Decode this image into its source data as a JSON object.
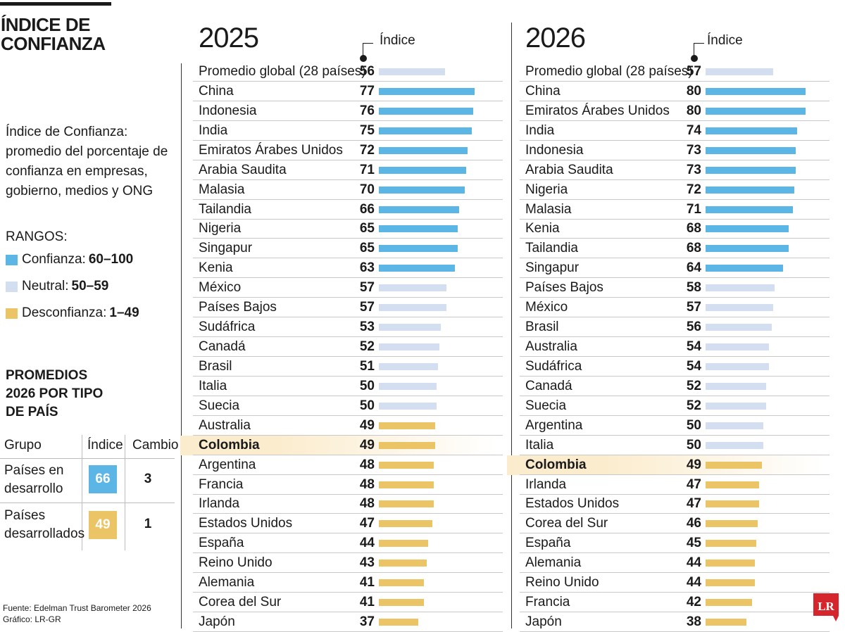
{
  "title_lines": [
    "ÍNDICE DE",
    "CONFIANZA"
  ],
  "description_lines": [
    "Índice de Confianza:",
    "promedio del porcentaje de",
    "confianza en empresas,",
    "gobierno, medios y ONG"
  ],
  "ranges": {
    "title": "RANGOS:",
    "items": [
      {
        "label": "Confianza:",
        "range": "60–100",
        "color": "#5bb5e5"
      },
      {
        "label": "Neutral:",
        "range": "50–59",
        "color": "#d3def0"
      },
      {
        "label": "Desconfianza:",
        "range": "1–49",
        "color": "#ebc466"
      }
    ]
  },
  "promedios": {
    "title_lines": [
      "PROMEDIOS",
      "2026 POR TIPO",
      "DE PAÍS"
    ],
    "headers": {
      "group": "Grupo",
      "index": "Índice",
      "change": "Cambio"
    },
    "rows": [
      {
        "group_lines": [
          "Países en",
          "desarrollo"
        ],
        "index": "66",
        "change": "3",
        "color": "#5bb5e5"
      },
      {
        "group_lines": [
          "Países",
          "desarrollados"
        ],
        "index": "49",
        "change": "1",
        "color": "#ebc466"
      }
    ]
  },
  "source_lines": [
    "Fuente: Edelman Trust Barometer 2026",
    "Gráfico: LR-GR"
  ],
  "logo_text": "LR",
  "colors": {
    "trust": "#5bb5e5",
    "neutral": "#d3def0",
    "distrust": "#ebc466",
    "highlight": "#fbeccd",
    "logo": "#d4262c"
  },
  "chart_data": [
    {
      "type": "bar",
      "year": "2025",
      "index_label": "Índice",
      "highlight": "Colombia",
      "xlim": [
        0,
        100
      ],
      "rows": [
        {
          "name": "Promedio global (28 países)",
          "value": 56
        },
        {
          "name": "China",
          "value": 77
        },
        {
          "name": "Indonesia",
          "value": 76
        },
        {
          "name": "India",
          "value": 75
        },
        {
          "name": "Emiratos Árabes Unidos",
          "value": 72
        },
        {
          "name": "Arabia Saudita",
          "value": 71
        },
        {
          "name": "Malasia",
          "value": 70
        },
        {
          "name": "Tailandia",
          "value": 66
        },
        {
          "name": "Nigeria",
          "value": 65
        },
        {
          "name": "Singapur",
          "value": 65
        },
        {
          "name": "Kenia",
          "value": 63
        },
        {
          "name": "México",
          "value": 57
        },
        {
          "name": "Países Bajos",
          "value": 57
        },
        {
          "name": "Sudáfrica",
          "value": 53
        },
        {
          "name": "Canadá",
          "value": 52
        },
        {
          "name": "Brasil",
          "value": 51
        },
        {
          "name": "Italia",
          "value": 50
        },
        {
          "name": "Suecia",
          "value": 50
        },
        {
          "name": "Australia",
          "value": 49
        },
        {
          "name": "Colombia",
          "value": 49
        },
        {
          "name": "Argentina",
          "value": 48
        },
        {
          "name": "Francia",
          "value": 48
        },
        {
          "name": "Irlanda",
          "value": 48
        },
        {
          "name": "Estados Unidos",
          "value": 47
        },
        {
          "name": "España",
          "value": 44
        },
        {
          "name": "Reino Unido",
          "value": 43
        },
        {
          "name": "Alemania",
          "value": 41
        },
        {
          "name": "Corea del Sur",
          "value": 41
        },
        {
          "name": "Japón",
          "value": 37
        }
      ]
    },
    {
      "type": "bar",
      "year": "2026",
      "index_label": "Índice",
      "highlight": "Colombia",
      "xlim": [
        0,
        100
      ],
      "rows": [
        {
          "name": "Promedio global (28 países)",
          "value": 57
        },
        {
          "name": "China",
          "value": 80
        },
        {
          "name": "Emiratos Árabes Unidos",
          "value": 80
        },
        {
          "name": "India",
          "value": 74
        },
        {
          "name": "Indonesia",
          "value": 73
        },
        {
          "name": "Arabia Saudita",
          "value": 73
        },
        {
          "name": "Nigeria",
          "value": 72
        },
        {
          "name": "Malasia",
          "value": 71
        },
        {
          "name": "Kenia",
          "value": 68
        },
        {
          "name": "Tailandia",
          "value": 68
        },
        {
          "name": "Singapur",
          "value": 64
        },
        {
          "name": "Países Bajos",
          "value": 58
        },
        {
          "name": "México",
          "value": 57
        },
        {
          "name": "Brasil",
          "value": 56
        },
        {
          "name": "Australia",
          "value": 54
        },
        {
          "name": "Sudáfrica",
          "value": 54
        },
        {
          "name": "Canadá",
          "value": 52
        },
        {
          "name": "Suecia",
          "value": 52
        },
        {
          "name": "Argentina",
          "value": 50
        },
        {
          "name": "Italia",
          "value": 50
        },
        {
          "name": "Colombia",
          "value": 49
        },
        {
          "name": "Irlanda",
          "value": 47
        },
        {
          "name": "Estados Unidos",
          "value": 47
        },
        {
          "name": "Corea del Sur",
          "value": 46
        },
        {
          "name": "España",
          "value": 45
        },
        {
          "name": "Alemania",
          "value": 44
        },
        {
          "name": "Reino Unido",
          "value": 44
        },
        {
          "name": "Francia",
          "value": 42
        },
        {
          "name": "Japón",
          "value": 38
        }
      ]
    }
  ]
}
